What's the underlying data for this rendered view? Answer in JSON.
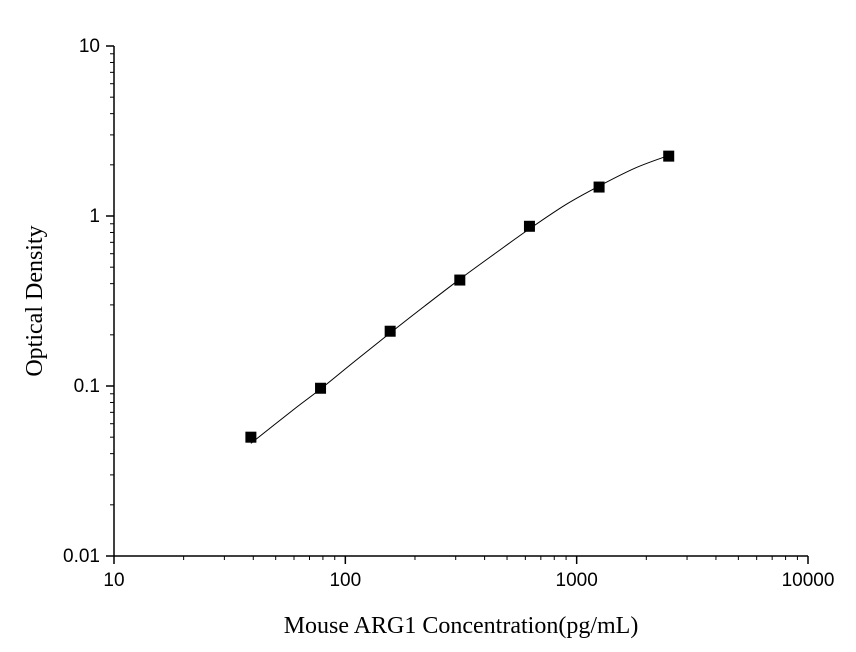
{
  "chart_data": {
    "type": "scatter",
    "title": "",
    "xlabel": "Mouse ARG1 Concentration(pg/mL)",
    "ylabel": "Optical Density",
    "x_scale": "log",
    "y_scale": "log",
    "xlim": [
      10,
      10000
    ],
    "ylim": [
      0.01,
      10
    ],
    "x_ticks": [
      10,
      100,
      1000,
      10000
    ],
    "x_tick_labels": [
      "10",
      "100",
      "1000",
      "10000"
    ],
    "y_ticks": [
      0.01,
      0.1,
      1,
      10
    ],
    "y_tick_labels": [
      "0.01",
      "0.1",
      "1",
      "10"
    ],
    "grid": false,
    "legend": "none",
    "marker": "square",
    "series": [
      {
        "x": [
          39.06,
          78.13,
          156.25,
          312.5,
          625,
          1250,
          2500
        ],
        "y": [
          0.05,
          0.097,
          0.21,
          0.42,
          0.87,
          1.48,
          2.25
        ]
      }
    ],
    "fit_curve": {
      "x": [
        39.06,
        60,
        78.13,
        110,
        156.25,
        220,
        312.5,
        450,
        625,
        900,
        1250,
        1800,
        2500
      ],
      "y": [
        0.046,
        0.073,
        0.096,
        0.14,
        0.205,
        0.295,
        0.425,
        0.61,
        0.84,
        1.17,
        1.5,
        1.92,
        2.27
      ]
    },
    "colors": {
      "marker": "#000000",
      "curve": "#000000",
      "axis": "#000000"
    }
  }
}
